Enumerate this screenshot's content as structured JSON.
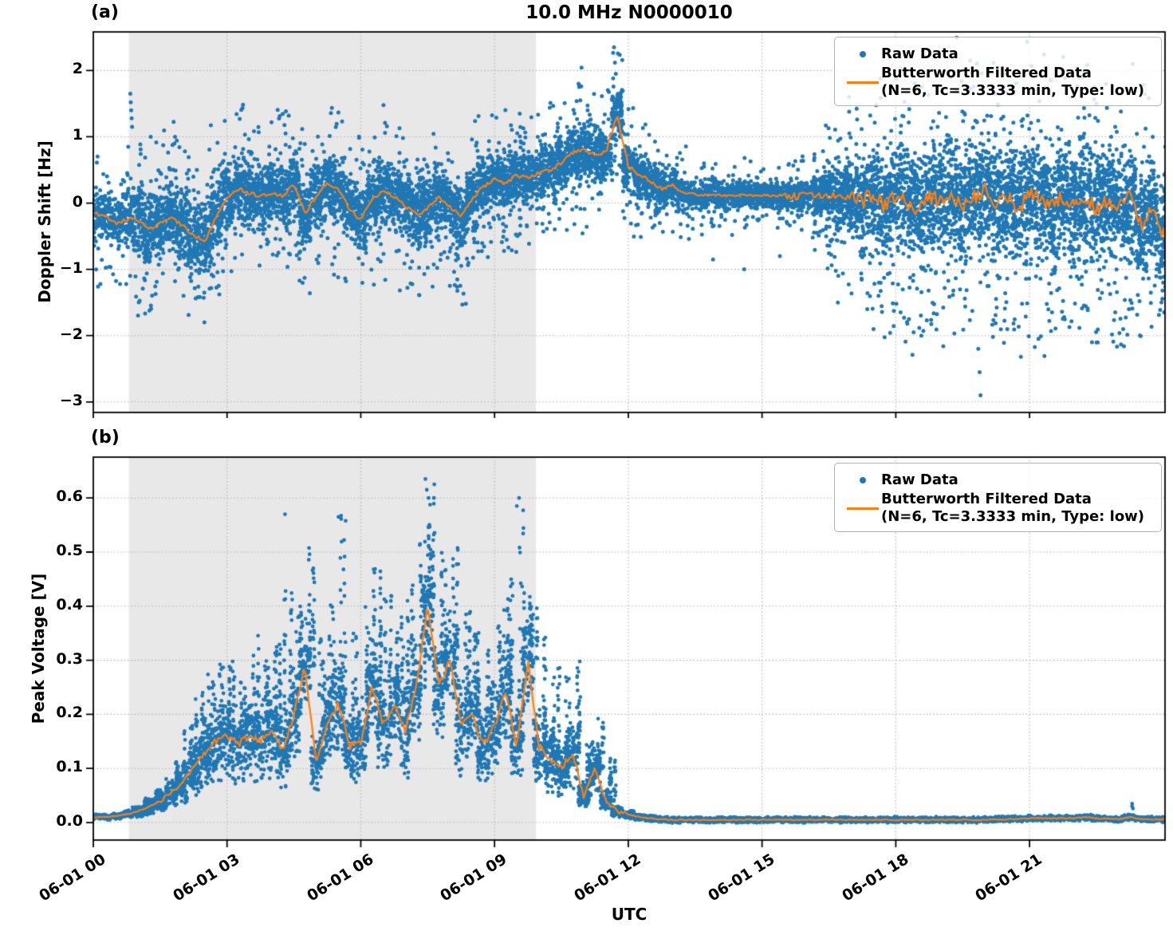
{
  "figure": {
    "background": "#ffffff",
    "shade_color": "#e8e8e8",
    "grid_color": "#b0b0b0",
    "axis_color": "#000000"
  },
  "legend_text": {
    "raw": "Raw Data",
    "filtered_line1": "Butterworth Filtered Data",
    "filtered_line2": "(N=6, Tc=3.3333 min, Type: low)"
  },
  "chart_data": [
    {
      "type": "scatter",
      "panel_tag": "(a)",
      "title": "10.0 MHz N0000010",
      "xlabel": "UTC",
      "ylabel": "Doppler Shift [Hz]",
      "x_hours_start": 0,
      "x_hours_step": 0.25,
      "xlim_hours": [
        0,
        24.04
      ],
      "ylim": [
        -3.16,
        2.58
      ],
      "x_tick_hours": [
        0,
        3,
        6,
        9,
        12,
        15,
        18,
        21
      ],
      "x_tick_labels": [
        "06-01 00",
        "06-01 03",
        "06-01 06",
        "06-01 09",
        "06-01 12",
        "06-01 15",
        "06-01 18",
        "06-01 21"
      ],
      "y_tick_values": [
        2,
        1,
        0,
        -1,
        -2,
        -3
      ],
      "y_tick_labels": [
        "2",
        "1",
        "0",
        "−1",
        "−2",
        "−3"
      ],
      "shaded_hours": [
        0.8,
        9.93
      ],
      "grid": true,
      "legend_position": "upper right",
      "series": [
        {
          "name": "Raw Data",
          "kind": "scatter",
          "color": "#1f77b4",
          "envelope_center_is": "same as filtered y",
          "envelope_halfwidth": [
            0.42,
            0.42,
            0.42,
            0.45,
            0.55,
            0.55,
            0.55,
            0.55,
            0.55,
            0.55,
            0.55,
            0.5,
            0.48,
            0.48,
            0.48,
            0.48,
            0.48,
            0.48,
            0.48,
            0.48,
            0.48,
            0.48,
            0.48,
            0.48,
            0.48,
            0.48,
            0.48,
            0.48,
            0.48,
            0.48,
            0.48,
            0.48,
            0.48,
            0.48,
            0.48,
            0.45,
            0.42,
            0.42,
            0.42,
            0.42,
            0.42,
            0.42,
            0.42,
            0.42,
            0.45,
            0.45,
            0.45,
            0.45,
            0.4,
            0.35,
            0.32,
            0.3,
            0.28,
            0.26,
            0.24,
            0.22,
            0.22,
            0.22,
            0.22,
            0.22,
            0.22,
            0.22,
            0.22,
            0.22,
            0.24,
            0.3,
            0.4,
            0.5,
            0.6,
            0.65,
            0.7,
            0.75,
            0.8,
            0.82,
            0.85,
            0.85,
            0.85,
            0.85,
            0.85,
            0.85,
            0.85,
            0.85,
            0.85,
            0.85,
            0.85,
            0.85,
            0.85,
            0.85,
            0.85,
            0.85,
            0.85,
            0.85,
            0.82,
            0.8,
            0.8,
            0.8,
            0.8
          ],
          "outliers": [
            [
              0.83,
              1.65
            ],
            [
              0.84,
              1.52
            ],
            [
              0.85,
              1.4
            ],
            [
              0.86,
              1.28
            ],
            [
              0.87,
              1.15
            ],
            [
              11.68,
              2.35
            ],
            [
              11.7,
              2.12
            ],
            [
              11.72,
              1.95
            ],
            [
              11.66,
              1.88
            ],
            [
              13.9,
              -0.85
            ],
            [
              14.6,
              -1.0
            ],
            [
              15.4,
              -0.8
            ],
            [
              16.7,
              -1.5
            ],
            [
              17.5,
              -1.9
            ],
            [
              18.4,
              -1.95
            ],
            [
              19.85,
              -2.2
            ],
            [
              19.88,
              -2.55
            ],
            [
              19.9,
              -2.9
            ],
            [
              20.5,
              -1.9
            ],
            [
              21.2,
              -2.05
            ],
            [
              22.4,
              -2.1
            ],
            [
              23.1,
              -1.9
            ]
          ]
        },
        {
          "name": "Butterworth Filtered Data (N=6, Tc=3.3333 min, Type: low)",
          "kind": "line",
          "color": "#ff7f0e",
          "y": [
            -0.15,
            -0.18,
            -0.3,
            -0.25,
            -0.25,
            -0.4,
            -0.3,
            -0.22,
            -0.35,
            -0.48,
            -0.58,
            -0.2,
            0.05,
            0.22,
            0.15,
            0.1,
            0.15,
            0.1,
            0.28,
            -0.15,
            0.1,
            0.3,
            0.22,
            -0.1,
            -0.25,
            0.05,
            0.18,
            0.1,
            -0.05,
            -0.18,
            -0.08,
            0.1,
            -0.05,
            -0.2,
            0.05,
            0.25,
            0.35,
            0.3,
            0.42,
            0.38,
            0.45,
            0.5,
            0.6,
            0.75,
            0.8,
            0.72,
            0.75,
            1.35,
            0.55,
            0.4,
            0.32,
            0.22,
            0.25,
            0.15,
            0.13,
            0.12,
            0.12,
            0.11,
            0.12,
            0.11,
            0.12,
            0.11,
            0.12,
            0.1,
            0.12,
            0.1,
            0.12,
            0.08,
            0.12,
            0.02,
            0.15,
            -0.05,
            0.12,
            0.0,
            -0.1,
            0.1,
            0.05,
            0.15,
            -0.05,
            0.1,
            0.18,
            0.0,
            0.1,
            -0.08,
            0.12,
            0.05,
            -0.05,
            0.1,
            0.0,
            0.12,
            -0.1,
            0.05,
            -0.05,
            0.1,
            -0.3,
            -0.15,
            -0.45
          ],
          "line_noise_breaks": [
            [
              0,
              0.03
            ],
            [
              11,
              0.04
            ],
            [
              13,
              0.015
            ],
            [
              15.5,
              0.05
            ],
            [
              17,
              0.12
            ]
          ]
        }
      ]
    },
    {
      "type": "scatter",
      "panel_tag": "(b)",
      "title": "",
      "xlabel": "UTC",
      "ylabel": "Peak Voltage [V]",
      "x_hours_start": 0,
      "x_hours_step": 0.25,
      "xlim_hours": [
        0,
        24.04
      ],
      "ylim": [
        -0.032,
        0.675
      ],
      "x_tick_hours": [
        0,
        3,
        6,
        9,
        12,
        15,
        18,
        21
      ],
      "x_tick_labels": [
        "06-01 00",
        "06-01 03",
        "06-01 06",
        "06-01 09",
        "06-01 12",
        "06-01 15",
        "06-01 18",
        "06-01 21"
      ],
      "y_tick_values": [
        0.6,
        0.5,
        0.4,
        0.3,
        0.2,
        0.1,
        0.0
      ],
      "y_tick_labels": [
        "0.6",
        "0.5",
        "0.4",
        "0.3",
        "0.2",
        "0.1",
        "0.0"
      ],
      "shaded_hours": [
        0.8,
        9.93
      ],
      "grid": true,
      "legend_position": "upper right",
      "series": [
        {
          "name": "Raw Data",
          "kind": "scatter",
          "color": "#1f77b4",
          "raw_max": [
            0.02,
            0.02,
            0.03,
            0.04,
            0.05,
            0.07,
            0.09,
            0.12,
            0.18,
            0.24,
            0.28,
            0.3,
            0.3,
            0.26,
            0.35,
            0.3,
            0.33,
            0.45,
            0.4,
            0.52,
            0.35,
            0.42,
            0.57,
            0.35,
            0.4,
            0.48,
            0.42,
            0.38,
            0.45,
            0.55,
            0.63,
            0.5,
            0.52,
            0.4,
            0.36,
            0.32,
            0.4,
            0.45,
            0.6,
            0.42,
            0.35,
            0.3,
            0.28,
            0.3,
            0.15,
            0.2,
            0.12,
            0.06,
            0.05,
            0.03,
            0.02,
            0.02,
            0.015,
            0.015,
            0.015,
            0.015,
            0.015,
            0.015,
            0.015,
            0.015,
            0.015,
            0.015,
            0.015,
            0.015,
            0.015,
            0.015,
            0.015,
            0.015,
            0.015,
            0.015,
            0.015,
            0.015,
            0.015,
            0.015,
            0.015,
            0.015,
            0.015,
            0.015,
            0.015,
            0.015,
            0.015,
            0.018,
            0.018,
            0.02,
            0.022,
            0.022,
            0.022,
            0.022,
            0.022,
            0.025,
            0.022,
            0.02,
            0.018,
            0.04,
            0.018,
            0.018,
            0.018
          ],
          "outliers": [
            [
              7.45,
              0.635
            ],
            [
              7.48,
              0.615
            ],
            [
              7.52,
              0.6
            ],
            [
              9.55,
              0.6
            ],
            [
              9.5,
              0.585
            ],
            [
              4.3,
              0.57
            ],
            [
              5.5,
              0.565
            ],
            [
              23.3,
              0.035
            ],
            [
              23.3,
              0.03
            ],
            [
              23.32,
              0.026
            ]
          ]
        },
        {
          "name": "Butterworth Filtered Data (N=6, Tc=3.3333 min, Type: low)",
          "kind": "line",
          "color": "#ff7f0e",
          "y": [
            0.01,
            0.01,
            0.012,
            0.015,
            0.02,
            0.03,
            0.04,
            0.055,
            0.075,
            0.1,
            0.13,
            0.15,
            0.16,
            0.145,
            0.16,
            0.15,
            0.17,
            0.13,
            0.2,
            0.29,
            0.11,
            0.19,
            0.22,
            0.14,
            0.15,
            0.25,
            0.18,
            0.22,
            0.17,
            0.25,
            0.4,
            0.25,
            0.3,
            0.18,
            0.2,
            0.14,
            0.18,
            0.24,
            0.14,
            0.3,
            0.14,
            0.12,
            0.1,
            0.13,
            0.05,
            0.1,
            0.04,
            0.02,
            0.015,
            0.01,
            0.008,
            0.006,
            0.005,
            0.005,
            0.005,
            0.005,
            0.005,
            0.005,
            0.005,
            0.005,
            0.005,
            0.005,
            0.005,
            0.005,
            0.005,
            0.005,
            0.005,
            0.005,
            0.005,
            0.005,
            0.005,
            0.005,
            0.005,
            0.005,
            0.005,
            0.005,
            0.005,
            0.005,
            0.005,
            0.005,
            0.005,
            0.006,
            0.006,
            0.007,
            0.008,
            0.008,
            0.008,
            0.008,
            0.008,
            0.01,
            0.008,
            0.007,
            0.006,
            0.01,
            0.006,
            0.006,
            0.006
          ],
          "line_noise_breaks": [
            [
              0,
              0.001
            ],
            [
              1.5,
              0.004
            ],
            [
              2.5,
              0.007
            ],
            [
              11,
              0.004
            ],
            [
              12,
              0.001
            ]
          ]
        }
      ]
    }
  ]
}
